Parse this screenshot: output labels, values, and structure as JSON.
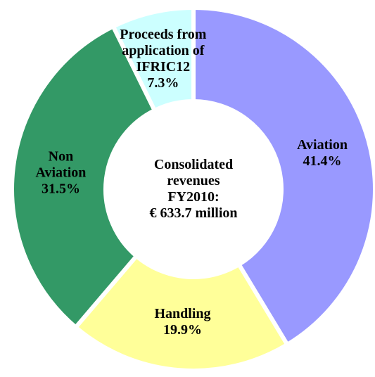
{
  "chart_data": {
    "type": "donut",
    "categories": [
      "Aviation",
      "Handling",
      "Non Aviation",
      "Proceeds from application of IFRIC12"
    ],
    "values": [
      41.4,
      19.9,
      31.5,
      7.3
    ],
    "value_labels": [
      "41.4%",
      "19.9%",
      "31.5%",
      "7.3%"
    ],
    "colors": [
      "#9999ff",
      "#ffff99",
      "#339966",
      "#ccffff"
    ],
    "center_label": [
      "Consolidated",
      "revenues",
      "FY2010:",
      "€ 633.7 million"
    ]
  }
}
